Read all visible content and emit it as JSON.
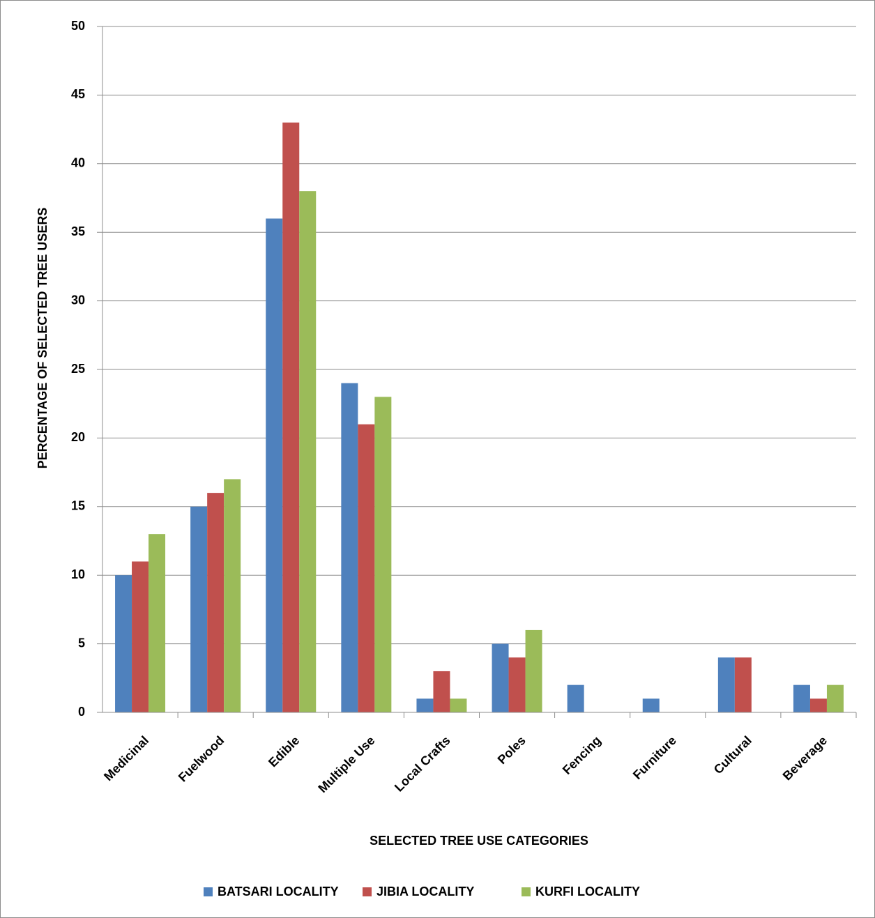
{
  "chart_data": {
    "type": "bar",
    "x_label": "SELECTED TREE USE CATEGORIES",
    "y_label": "PERCENTAGE OF SELECTED TREE USERS",
    "categories": [
      "Medicinal",
      "Fuelwood",
      "Edible",
      "Multiple Use",
      "Local Crafts",
      "Poles",
      "Fencing",
      "Furniture",
      "Cultural",
      "Beverage"
    ],
    "series": [
      {
        "name": "BATSARI LOCALITY",
        "color": "#4f81bd",
        "values": [
          10,
          15,
          36,
          24,
          1,
          5,
          2,
          1,
          4,
          2
        ]
      },
      {
        "name": "JIBIA LOCALITY",
        "color": "#c0504d",
        "values": [
          11,
          16,
          43,
          21,
          3,
          4,
          0,
          0,
          4,
          1
        ]
      },
      {
        "name": "KURFI LOCALITY",
        "color": "#9bbb59",
        "values": [
          13,
          17,
          38,
          23,
          1,
          6,
          0,
          0,
          0,
          2
        ]
      }
    ],
    "ylim": [
      0,
      50
    ],
    "yticks": [
      0,
      5,
      10,
      15,
      20,
      25,
      30,
      35,
      40,
      45,
      50
    ],
    "grid": true,
    "legend": "bottom"
  }
}
